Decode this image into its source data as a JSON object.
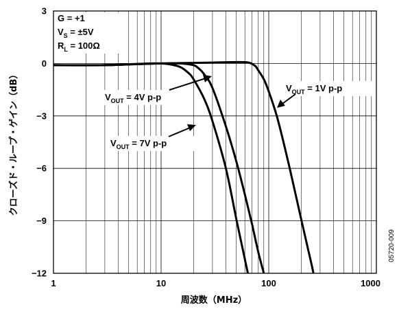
{
  "chart_data": {
    "type": "line",
    "title": "",
    "xlabel": "周波数（MHz）",
    "ylabel": "クローズド・ループ・ゲイン（dB）",
    "xscale": "log",
    "xlim": [
      1,
      1000
    ],
    "ylim": [
      -12,
      3
    ],
    "grid": true,
    "x_ticks": [
      "1",
      "10",
      "100",
      "1000"
    ],
    "y_ticks": [
      "3",
      "0",
      "−3",
      "−6",
      "−9",
      "−12"
    ],
    "y_tick_values": [
      3,
      0,
      -3,
      -6,
      -9,
      -12
    ],
    "conditions": {
      "line1": "G = +1",
      "line2_main": "V",
      "line2_sub": "S",
      "line2_rest": " = ±5V",
      "line3_main": "R",
      "line3_sub": "L",
      "line3_rest": " = 100Ω"
    },
    "series": [
      {
        "label_main": "V",
        "label_sub": "OUT",
        "label_rest": " = 7V p-p",
        "x": [
          1,
          3,
          5,
          8,
          10,
          12,
          15,
          18,
          20,
          25,
          30,
          40,
          50,
          60,
          64
        ],
        "y": [
          -0.1,
          -0.1,
          -0.05,
          0,
          0,
          -0.05,
          -0.2,
          -0.55,
          -0.9,
          -2.0,
          -3.3,
          -6.0,
          -8.9,
          -11.2,
          -12
        ]
      },
      {
        "label_main": "V",
        "label_sub": "OUT",
        "label_rest": " = 4V p-p",
        "x": [
          1,
          3,
          5,
          10,
          15,
          20,
          22,
          25,
          30,
          40,
          50,
          60,
          70,
          80,
          90
        ],
        "y": [
          -0.1,
          -0.1,
          -0.05,
          0,
          0,
          -0.1,
          -0.25,
          -0.6,
          -1.4,
          -3.6,
          -5.6,
          -7.5,
          -9.2,
          -10.8,
          -12
        ]
      },
      {
        "label_main": "V",
        "label_sub": "OUT",
        "label_rest": " = 1V p-p",
        "x": [
          1,
          3,
          10,
          30,
          50,
          65,
          75,
          80,
          90,
          100,
          120,
          150,
          200,
          250,
          260
        ],
        "y": [
          -0.1,
          -0.1,
          0,
          0.05,
          0.08,
          0.05,
          -0.15,
          -0.4,
          -0.9,
          -1.6,
          -3.1,
          -5.5,
          -8.9,
          -11.5,
          -12
        ]
      }
    ]
  },
  "figure_id": "05720-009"
}
